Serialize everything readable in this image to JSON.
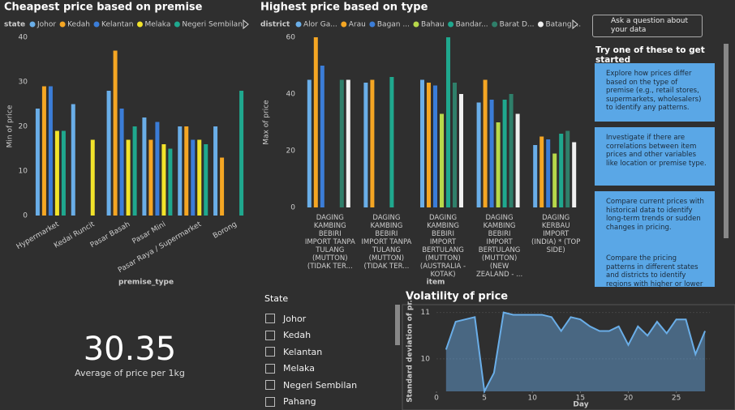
{
  "chart_data": [
    {
      "type": "bar",
      "title": "Cheapest price based on premise",
      "legend_title": "state",
      "x_label": "premise_type",
      "y_label": "Min of price",
      "categories": [
        "Hypermarket",
        "Kedai Runcit",
        "Pasar Basah",
        "Pasar Mini",
        "Pasar Raya / Supermarket",
        "Borong"
      ],
      "series": [
        {
          "name": "Johor",
          "color": "#6aaee8",
          "values": [
            24,
            25,
            28,
            22,
            20,
            20
          ]
        },
        {
          "name": "Kedah",
          "color": "#f5a623",
          "values": [
            29,
            null,
            37,
            17,
            20,
            13
          ]
        },
        {
          "name": "Kelantan",
          "color": "#3b7dd8",
          "values": [
            29,
            null,
            24,
            21,
            17,
            null
          ]
        },
        {
          "name": "Melaka",
          "color": "#f2e32a",
          "values": [
            19,
            17,
            17,
            16,
            17,
            null
          ]
        },
        {
          "name": "Negeri Sembilan",
          "color": "#1fa88e",
          "values": [
            19,
            null,
            20,
            15,
            16,
            28
          ]
        }
      ],
      "ylim": [
        0,
        40
      ],
      "yticks": [
        0,
        10,
        20,
        30,
        40
      ]
    },
    {
      "type": "bar",
      "title": "Highest price based on type",
      "legend_title": "district",
      "x_label": "item",
      "y_label": "Max of price",
      "categories": [
        "DAGING KAMBING BEBIRI IMPORT TANPA TULANG (MUTTON) (TIDAK TER...",
        "DAGING KAMBING BEBIRI IMPORT TANPA TULANG (MUTTON) (TIDAK TER...",
        "DAGING KAMBING BEBIRI IMPORT BERTULANG (MUTTON) (AUSTRALIA - KOTAK)",
        "DAGING KAMBING BEBIRI IMPORT BERTULANG (MUTTON) (NEW ZEALAND - ...",
        "DAGING KERBAU IMPORT (INDIA) * (TOP SIDE)"
      ],
      "series": [
        {
          "name": "Alor Ga...",
          "color": "#6aaee8",
          "values": [
            45,
            44,
            45,
            37,
            22
          ]
        },
        {
          "name": "Arau",
          "color": "#f5a623",
          "values": [
            60,
            45,
            44,
            45,
            25
          ]
        },
        {
          "name": "Bagan ...",
          "color": "#3b7dd8",
          "values": [
            50,
            null,
            43,
            38,
            24
          ]
        },
        {
          "name": "Bahau",
          "color": "#b7d84a",
          "values": [
            null,
            null,
            33,
            30,
            19
          ]
        },
        {
          "name": "Bandar...",
          "color": "#1fa88e",
          "values": [
            null,
            46,
            60,
            38,
            26
          ]
        },
        {
          "name": "Barat D...",
          "color": "#2f7f6a",
          "values": [
            45,
            null,
            44,
            40,
            27
          ]
        },
        {
          "name": "Batang ...",
          "color": "#f0f0f0",
          "values": [
            45,
            null,
            40,
            33,
            23
          ]
        }
      ],
      "ylim": [
        0,
        60
      ],
      "yticks": [
        0,
        20,
        40,
        60
      ]
    },
    {
      "type": "area",
      "title": "Volatility of price",
      "x_label": "Day",
      "y_label": "Standard deviation of pr...",
      "color": "#6aaee8",
      "x": [
        1,
        2,
        3,
        4,
        5,
        6,
        7,
        8,
        9,
        10,
        11,
        12,
        13,
        14,
        15,
        16,
        17,
        18,
        19,
        20,
        21,
        22,
        23,
        24,
        25,
        26,
        27,
        28
      ],
      "values": [
        10.2,
        10.8,
        10.85,
        10.9,
        9.3,
        9.7,
        11.0,
        10.95,
        10.95,
        10.95,
        10.95,
        10.9,
        10.6,
        10.9,
        10.85,
        10.7,
        10.6,
        10.6,
        10.7,
        10.3,
        10.7,
        10.5,
        10.8,
        10.55,
        10.85,
        10.85,
        10.1,
        10.6
      ],
      "xlim": [
        0,
        28.5
      ],
      "xticks": [
        0,
        5,
        10,
        15,
        20,
        25
      ],
      "ylim": [
        9.3,
        11.15
      ],
      "yticks": [
        10,
        11
      ]
    }
  ],
  "card": {
    "value": "30.35",
    "label": "Average of price per 1kg"
  },
  "slicer": {
    "title": "State",
    "items": [
      "Johor",
      "Kedah",
      "Kelantan",
      "Melaka",
      "Negeri Sembilan",
      "Pahang"
    ]
  },
  "qa_panel": {
    "button": "Ask a question about your data",
    "heading": "Try one of these to get started",
    "suggestions": [
      "Explore how prices differ based on the type of premise (e.g., retail stores, supermarkets, wholesalers) to identify any patterns.",
      "Investigate if there are correlations between item prices and other variables like location or premise type.",
      "Compare current prices with historical data to identify long-term trends or sudden changes in pricing.",
      "Compare the pricing patterns in different states and districts to identify regions with higher or lower"
    ]
  }
}
